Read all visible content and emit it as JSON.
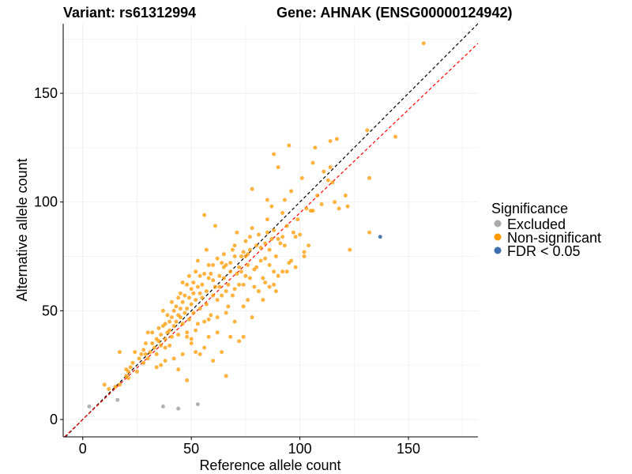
{
  "chart_data": {
    "type": "scatter",
    "title_left": "Variant: rs61312994",
    "title_right": "Gene: AHNAK (ENSG00000124942)",
    "xlabel": "Reference allele count",
    "ylabel": "Alternative allele count",
    "xlim": [
      -9,
      182
    ],
    "ylim": [
      -8,
      182
    ],
    "x_ticks": [
      0,
      50,
      100,
      150
    ],
    "y_ticks": [
      0,
      50,
      100,
      150
    ],
    "grid": true,
    "legend": {
      "title": "Significance",
      "position": "right",
      "entries": [
        {
          "label": "Excluded",
          "color": "#AAAAAA"
        },
        {
          "label": "Non-significant",
          "color": "#FF9900"
        },
        {
          "label": "FDR < 0.05",
          "color": "#3C6EAB"
        }
      ]
    },
    "reference_lines": [
      {
        "name": "identity",
        "slope": 1.0,
        "intercept": 0,
        "color": "#000000",
        "dash": true
      },
      {
        "name": "fit",
        "slope": 0.95,
        "intercept": 0,
        "color": "#FF0000",
        "dash": true
      }
    ],
    "series": [
      {
        "name": "Excluded",
        "color": "#AAAAAA",
        "points": [
          [
            3,
            6
          ],
          [
            16,
            9
          ],
          [
            37,
            6
          ],
          [
            44,
            5
          ],
          [
            53,
            7
          ]
        ]
      },
      {
        "name": "FDR < 0.05",
        "color": "#3C6EAB",
        "points": [
          [
            137,
            84
          ]
        ]
      },
      {
        "name": "Non-significant",
        "color": "#FF9900",
        "points": [
          [
            157,
            173
          ],
          [
            144,
            130
          ],
          [
            131,
            133
          ],
          [
            132,
            111
          ],
          [
            132,
            86
          ],
          [
            123,
            78
          ],
          [
            122,
            98
          ],
          [
            121,
            103
          ],
          [
            118,
            97
          ],
          [
            117,
            129
          ],
          [
            116,
            100
          ],
          [
            115,
            109
          ],
          [
            114,
            128
          ],
          [
            114,
            116
          ],
          [
            113,
            110
          ],
          [
            111,
            114
          ],
          [
            110,
            99
          ],
          [
            108,
            103
          ],
          [
            107,
            125
          ],
          [
            106,
            118
          ],
          [
            106,
            96
          ],
          [
            105,
            96
          ],
          [
            104,
            80
          ],
          [
            103,
            97
          ],
          [
            102,
            77
          ],
          [
            101,
            111
          ],
          [
            100,
            85
          ],
          [
            99,
            92
          ],
          [
            98,
            84
          ],
          [
            97,
            86
          ],
          [
            96,
            105
          ],
          [
            96,
            73
          ],
          [
            95,
            126
          ],
          [
            95,
            72
          ],
          [
            94,
            89
          ],
          [
            94,
            68
          ],
          [
            93,
            101
          ],
          [
            93,
            80
          ],
          [
            92,
            95
          ],
          [
            92,
            84
          ],
          [
            91,
            81
          ],
          [
            90,
            116
          ],
          [
            90,
            83
          ],
          [
            89,
            75
          ],
          [
            89,
            59
          ],
          [
            88,
            122
          ],
          [
            88,
            87
          ],
          [
            88,
            68
          ],
          [
            87,
            98
          ],
          [
            87,
            83
          ],
          [
            86,
            78
          ],
          [
            86,
            71
          ],
          [
            85,
            101
          ],
          [
            85,
            92
          ],
          [
            85,
            86
          ],
          [
            84,
            81
          ],
          [
            84,
            74
          ],
          [
            83,
            65
          ],
          [
            83,
            55
          ],
          [
            82,
            79
          ],
          [
            82,
            73
          ],
          [
            81,
            85
          ],
          [
            81,
            59
          ],
          [
            80,
            80
          ],
          [
            80,
            70
          ],
          [
            79,
            69
          ],
          [
            79,
            61
          ],
          [
            78,
            106
          ],
          [
            78,
            88
          ],
          [
            78,
            47
          ],
          [
            77,
            84
          ],
          [
            77,
            78
          ],
          [
            77,
            65
          ],
          [
            76,
            76
          ],
          [
            76,
            71
          ],
          [
            75,
            82
          ],
          [
            75,
            75
          ],
          [
            75,
            66
          ],
          [
            74,
            77
          ],
          [
            74,
            52
          ],
          [
            73,
            75
          ],
          [
            73,
            68
          ],
          [
            72,
            70
          ],
          [
            72,
            62
          ],
          [
            71,
            86
          ],
          [
            71,
            67
          ],
          [
            70,
            80
          ],
          [
            70,
            75
          ],
          [
            70,
            60
          ],
          [
            69,
            78
          ],
          [
            69,
            57
          ],
          [
            68,
            72
          ],
          [
            68,
            68
          ],
          [
            67,
            62
          ],
          [
            67,
            52
          ],
          [
            66,
            71
          ],
          [
            66,
            59
          ],
          [
            65,
            76
          ],
          [
            65,
            70
          ],
          [
            65,
            65
          ],
          [
            64,
            72
          ],
          [
            64,
            57
          ],
          [
            63,
            66
          ],
          [
            63,
            61
          ],
          [
            62,
            55
          ],
          [
            62,
            74
          ],
          [
            61,
            89
          ],
          [
            61,
            61
          ],
          [
            60,
            71
          ],
          [
            60,
            64
          ],
          [
            60,
            57
          ],
          [
            59,
            67
          ],
          [
            59,
            48
          ],
          [
            58,
            71
          ],
          [
            58,
            65
          ],
          [
            57,
            78
          ],
          [
            57,
            59
          ],
          [
            57,
            53
          ],
          [
            56,
            94
          ],
          [
            56,
            67
          ],
          [
            55,
            62
          ],
          [
            55,
            56
          ],
          [
            54,
            66
          ],
          [
            54,
            58
          ],
          [
            54,
            51
          ],
          [
            53,
            73
          ],
          [
            53,
            61
          ],
          [
            53,
            44
          ],
          [
            52,
            68
          ],
          [
            52,
            55
          ],
          [
            51,
            63
          ],
          [
            51,
            58
          ],
          [
            51,
            49
          ],
          [
            50,
            60
          ],
          [
            50,
            53
          ],
          [
            50,
            37
          ],
          [
            49,
            66
          ],
          [
            49,
            56
          ],
          [
            49,
            46
          ],
          [
            48,
            62
          ],
          [
            48,
            51
          ],
          [
            48,
            40
          ],
          [
            47,
            57
          ],
          [
            47,
            49
          ],
          [
            46,
            63
          ],
          [
            46,
            54
          ],
          [
            46,
            44
          ],
          [
            45,
            58
          ],
          [
            45,
            51
          ],
          [
            45,
            47
          ],
          [
            44,
            56
          ],
          [
            44,
            48
          ],
          [
            44,
            39
          ],
          [
            43,
            52
          ],
          [
            43,
            45
          ],
          [
            42,
            50
          ],
          [
            42,
            43
          ],
          [
            41,
            54
          ],
          [
            41,
            47
          ],
          [
            41,
            38
          ],
          [
            40,
            45
          ],
          [
            40,
            41
          ],
          [
            39,
            48
          ],
          [
            39,
            40
          ],
          [
            38,
            44
          ],
          [
            38,
            37
          ],
          [
            38,
            33
          ],
          [
            37,
            50
          ],
          [
            37,
            43
          ],
          [
            36,
            39
          ],
          [
            36,
            34
          ],
          [
            35,
            42
          ],
          [
            35,
            36
          ],
          [
            34,
            37
          ],
          [
            34,
            30
          ],
          [
            33,
            33
          ],
          [
            32,
            40
          ],
          [
            32,
            35
          ],
          [
            31,
            31
          ],
          [
            30,
            40
          ],
          [
            30,
            28
          ],
          [
            29,
            35
          ],
          [
            29,
            30
          ],
          [
            28,
            32
          ],
          [
            28,
            26
          ],
          [
            27,
            30
          ],
          [
            26,
            28
          ],
          [
            25,
            22
          ],
          [
            24,
            31
          ],
          [
            23,
            26
          ],
          [
            22,
            24
          ],
          [
            21,
            22
          ],
          [
            21,
            19
          ],
          [
            20,
            23
          ],
          [
            20,
            20
          ],
          [
            17,
            16
          ],
          [
            17,
            31
          ],
          [
            15,
            15
          ],
          [
            12,
            14
          ],
          [
            10,
            16
          ],
          [
            44,
            23
          ],
          [
            48,
            18
          ],
          [
            56,
            33
          ],
          [
            60,
            27
          ],
          [
            64,
            31
          ],
          [
            66,
            20
          ],
          [
            62,
            40
          ],
          [
            58,
            38
          ],
          [
            52,
            31
          ],
          [
            50,
            35
          ],
          [
            46,
            30
          ],
          [
            42,
            28
          ],
          [
            40,
            34
          ],
          [
            38,
            27
          ],
          [
            36,
            25
          ],
          [
            34,
            24
          ],
          [
            54,
            30
          ],
          [
            68,
            38
          ],
          [
            72,
            36
          ],
          [
            74,
            38
          ],
          [
            70,
            45
          ],
          [
            84,
            63
          ],
          [
            86,
            61
          ],
          [
            90,
            66
          ],
          [
            92,
            68
          ],
          [
            98,
            70
          ],
          [
            102,
            75
          ],
          [
            88,
            62
          ],
          [
            76,
            55
          ],
          [
            74,
            62
          ],
          [
            66,
            49
          ],
          [
            62,
            47
          ],
          [
            58,
            46
          ],
          [
            56,
            45
          ],
          [
            52,
            41
          ],
          [
            48,
            38
          ]
        ]
      }
    ]
  }
}
